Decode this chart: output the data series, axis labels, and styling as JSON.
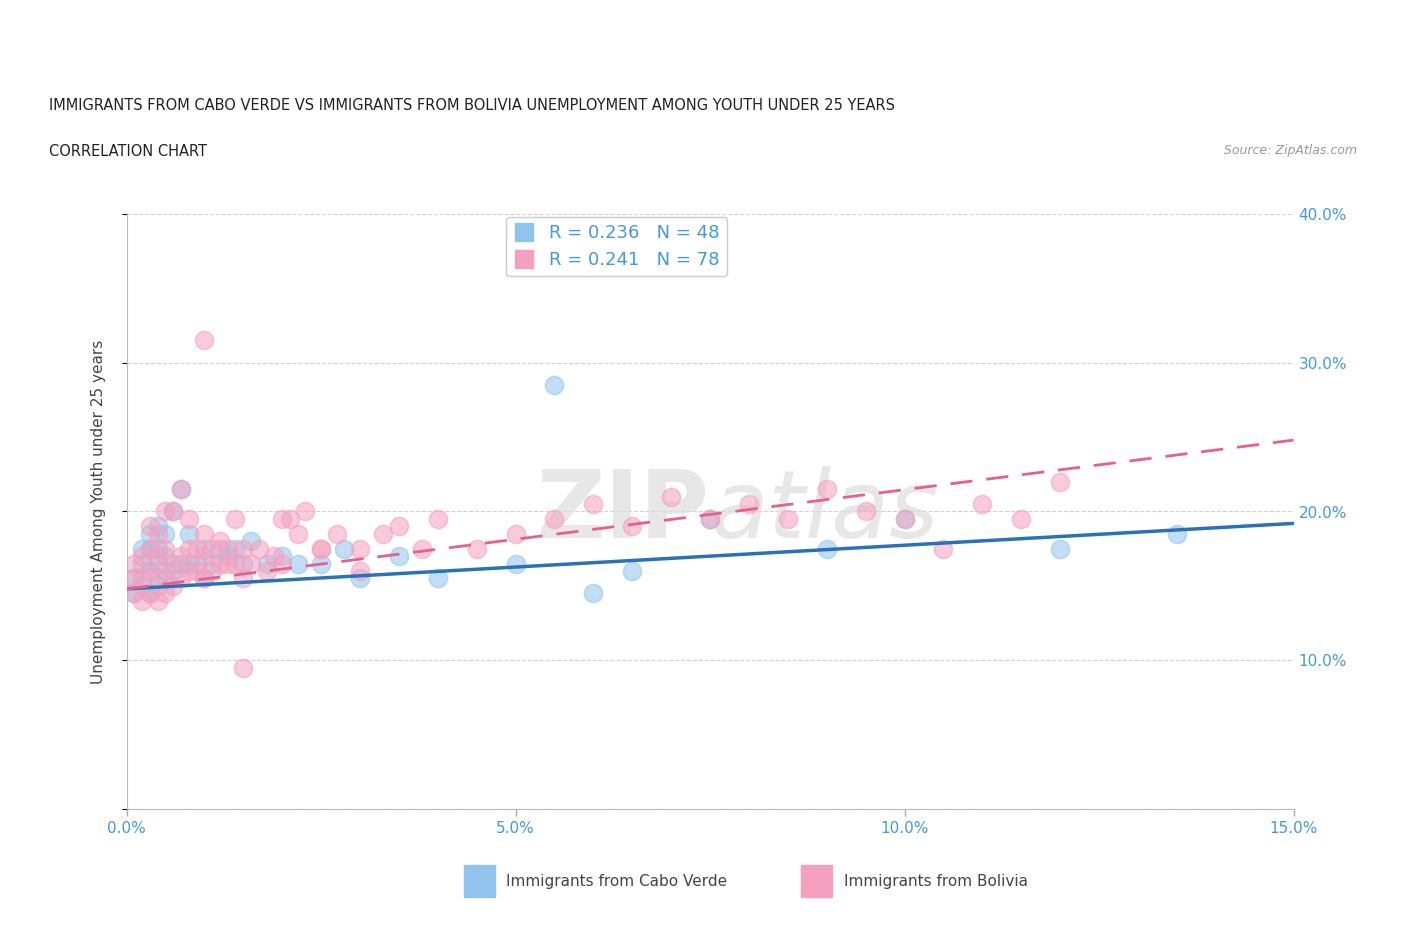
{
  "title_line1": "IMMIGRANTS FROM CABO VERDE VS IMMIGRANTS FROM BOLIVIA UNEMPLOYMENT AMONG YOUTH UNDER 25 YEARS",
  "title_line2": "CORRELATION CHART",
  "source": "Source: ZipAtlas.com",
  "ylabel": "Unemployment Among Youth under 25 years",
  "xlim": [
    0.0,
    0.15
  ],
  "ylim": [
    0.0,
    0.4
  ],
  "xticks": [
    0.0,
    0.05,
    0.1,
    0.15
  ],
  "xticklabels": [
    "0.0%",
    "5.0%",
    "10.0%",
    "15.0%"
  ],
  "yticks": [
    0.0,
    0.1,
    0.2,
    0.3,
    0.4
  ],
  "yticklabels": [
    "",
    "10.0%",
    "20.0%",
    "30.0%",
    "40.0%"
  ],
  "cabo_verde_color": "#90c4ef",
  "bolivia_color": "#f5a0be",
  "cabo_verde_line_color": "#2a72b8",
  "bolivia_line_color": "#e8608a",
  "cabo_verde_R": 0.236,
  "cabo_verde_N": 48,
  "bolivia_R": 0.241,
  "bolivia_N": 78,
  "watermark_zip": "ZIP",
  "watermark_atlas": "atlas",
  "cabo_verde_x": [
    0.001,
    0.001,
    0.002,
    0.002,
    0.002,
    0.003,
    0.003,
    0.003,
    0.003,
    0.004,
    0.004,
    0.004,
    0.004,
    0.005,
    0.005,
    0.005,
    0.006,
    0.006,
    0.007,
    0.007,
    0.008,
    0.008,
    0.009,
    0.01,
    0.01,
    0.011,
    0.012,
    0.013,
    0.014,
    0.015,
    0.016,
    0.018,
    0.02,
    0.022,
    0.025,
    0.028,
    0.03,
    0.035,
    0.04,
    0.05,
    0.055,
    0.06,
    0.065,
    0.075,
    0.09,
    0.1,
    0.12,
    0.135
  ],
  "cabo_verde_y": [
    0.145,
    0.155,
    0.15,
    0.165,
    0.175,
    0.145,
    0.16,
    0.175,
    0.185,
    0.15,
    0.165,
    0.175,
    0.19,
    0.155,
    0.17,
    0.185,
    0.16,
    0.2,
    0.165,
    0.215,
    0.165,
    0.185,
    0.165,
    0.155,
    0.175,
    0.165,
    0.175,
    0.17,
    0.175,
    0.165,
    0.18,
    0.165,
    0.17,
    0.165,
    0.165,
    0.175,
    0.155,
    0.17,
    0.155,
    0.165,
    0.285,
    0.145,
    0.16,
    0.195,
    0.175,
    0.195,
    0.175,
    0.185
  ],
  "bolivia_x": [
    0.001,
    0.001,
    0.001,
    0.002,
    0.002,
    0.002,
    0.003,
    0.003,
    0.003,
    0.003,
    0.004,
    0.004,
    0.004,
    0.004,
    0.005,
    0.005,
    0.005,
    0.005,
    0.006,
    0.006,
    0.006,
    0.007,
    0.007,
    0.007,
    0.008,
    0.008,
    0.008,
    0.009,
    0.009,
    0.01,
    0.01,
    0.01,
    0.011,
    0.011,
    0.012,
    0.012,
    0.013,
    0.013,
    0.014,
    0.014,
    0.015,
    0.015,
    0.016,
    0.017,
    0.018,
    0.019,
    0.02,
    0.021,
    0.022,
    0.023,
    0.025,
    0.027,
    0.03,
    0.033,
    0.035,
    0.038,
    0.04,
    0.045,
    0.05,
    0.055,
    0.06,
    0.065,
    0.07,
    0.075,
    0.08,
    0.085,
    0.09,
    0.095,
    0.1,
    0.105,
    0.11,
    0.115,
    0.12,
    0.01,
    0.015,
    0.02,
    0.025,
    0.03
  ],
  "bolivia_y": [
    0.145,
    0.155,
    0.165,
    0.14,
    0.155,
    0.17,
    0.145,
    0.16,
    0.175,
    0.19,
    0.14,
    0.155,
    0.17,
    0.185,
    0.145,
    0.16,
    0.175,
    0.2,
    0.15,
    0.165,
    0.2,
    0.155,
    0.17,
    0.215,
    0.16,
    0.175,
    0.195,
    0.16,
    0.175,
    0.155,
    0.17,
    0.185,
    0.16,
    0.175,
    0.165,
    0.18,
    0.165,
    0.175,
    0.165,
    0.195,
    0.155,
    0.175,
    0.165,
    0.175,
    0.16,
    0.17,
    0.165,
    0.195,
    0.185,
    0.2,
    0.175,
    0.185,
    0.175,
    0.185,
    0.19,
    0.175,
    0.195,
    0.175,
    0.185,
    0.195,
    0.205,
    0.19,
    0.21,
    0.195,
    0.205,
    0.195,
    0.215,
    0.2,
    0.195,
    0.175,
    0.205,
    0.195,
    0.22,
    0.315,
    0.095,
    0.195,
    0.175,
    0.16
  ],
  "cv_trend_x0": 0.0,
  "cv_trend_y0": 0.148,
  "cv_trend_x1": 0.15,
  "cv_trend_y1": 0.192,
  "bo_trend_x0": 0.0,
  "bo_trend_y0": 0.148,
  "bo_trend_x1": 0.15,
  "bo_trend_y1": 0.248
}
